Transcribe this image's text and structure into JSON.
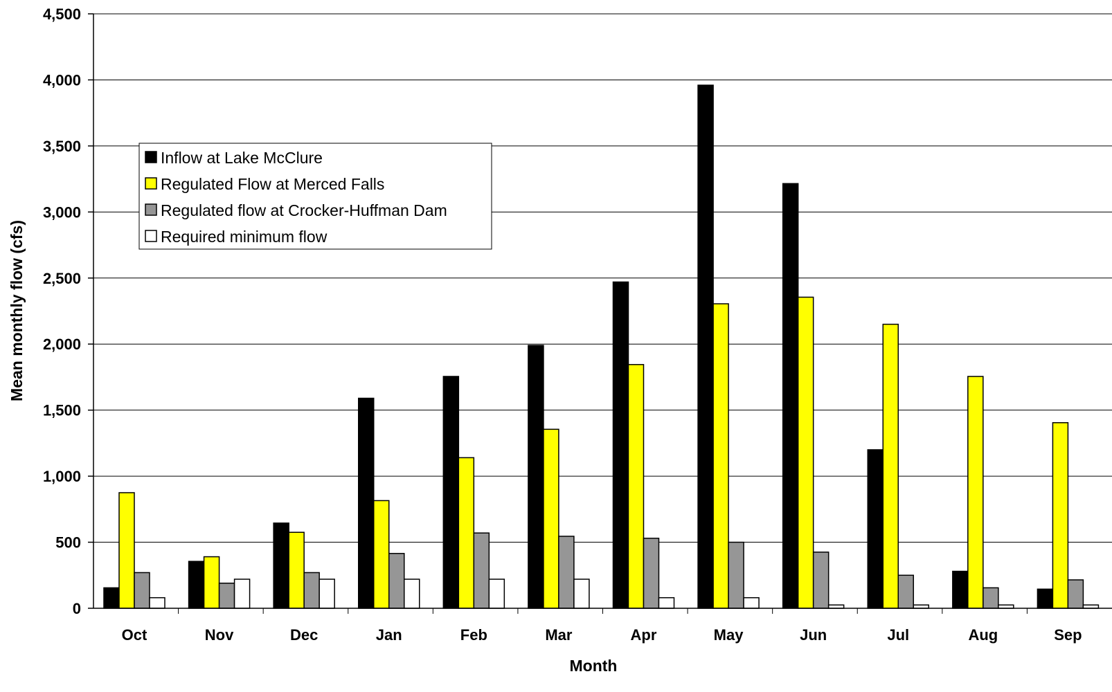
{
  "chart_data": {
    "type": "bar",
    "title": "",
    "xlabel": "Month",
    "ylabel": "Mean monthly flow (cfs)",
    "categories": [
      "Oct",
      "Nov",
      "Dec",
      "Jan",
      "Feb",
      "Mar",
      "Apr",
      "May",
      "Jun",
      "Jul",
      "Aug",
      "Sep"
    ],
    "ylim": [
      0,
      4500
    ],
    "yticks": [
      0,
      500,
      1000,
      1500,
      2000,
      2500,
      3000,
      3500,
      4000,
      4500
    ],
    "ytick_labels": [
      "0",
      "500",
      "1,000",
      "1,500",
      "2,000",
      "2,500",
      "3,000",
      "3,500",
      "4,000",
      "4,500"
    ],
    "grid": "horizontal",
    "legend_position": "upper-left",
    "series": [
      {
        "name": "Inflow at Lake McClure",
        "color": "#000000",
        "values": [
          155,
          355,
          645,
          1590,
          1755,
          1990,
          2470,
          3960,
          3215,
          1200,
          280,
          145
        ]
      },
      {
        "name": "Regulated Flow at Merced Falls",
        "color": "#ffff00",
        "values": [
          875,
          390,
          575,
          815,
          1140,
          1355,
          1845,
          2305,
          2355,
          2150,
          1755,
          1405
        ]
      },
      {
        "name": "Regulated flow at Crocker-Huffman Dam",
        "color": "#969696",
        "values": [
          270,
          190,
          270,
          415,
          570,
          545,
          530,
          500,
          425,
          250,
          155,
          215
        ]
      },
      {
        "name": "Required minimum flow",
        "color": "#ffffff",
        "values": [
          80,
          220,
          220,
          220,
          220,
          220,
          80,
          80,
          25,
          25,
          25,
          25
        ]
      }
    ]
  }
}
